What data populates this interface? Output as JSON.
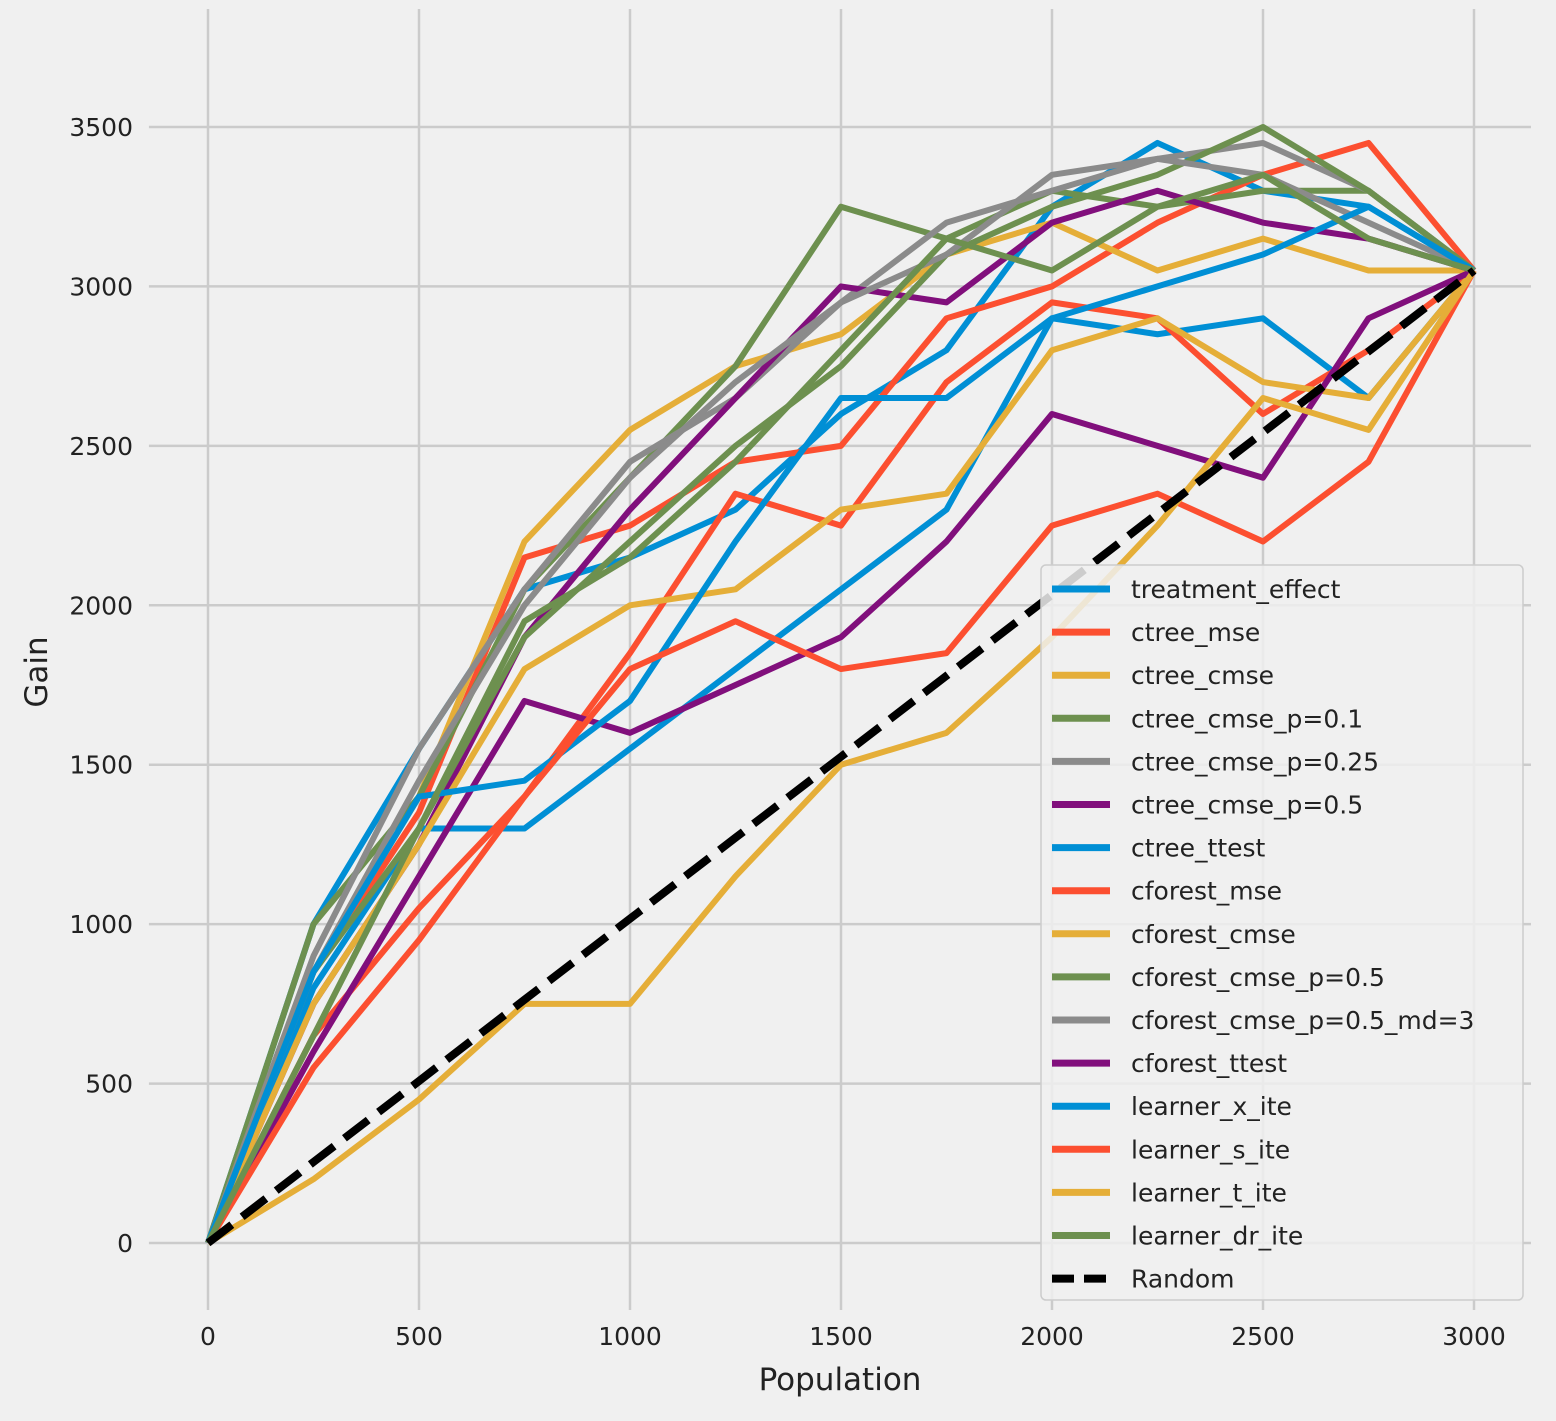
{
  "chart_data": {
    "type": "line",
    "title": "",
    "xlabel": "Population",
    "ylabel": "Gain",
    "xlim": [
      -140,
      3135
    ],
    "ylim": [
      -210,
      3870
    ],
    "xticks": [
      0,
      500,
      1000,
      1500,
      2000,
      2500,
      3000
    ],
    "yticks": [
      0,
      500,
      1000,
      1500,
      2000,
      2500,
      3000,
      3500
    ],
    "grid": true,
    "legend_position": "lower-right",
    "x": [
      0,
      250,
      500,
      750,
      1000,
      1250,
      1500,
      1750,
      2000,
      2250,
      2500,
      2750,
      3000
    ],
    "series": [
      {
        "name": "treatment_effect",
        "color": "#008fd5",
        "values": [
          0,
          1000,
          1550,
          2050,
          2150,
          2300,
          2600,
          2800,
          3250,
          3450,
          3300,
          3250,
          3050
        ]
      },
      {
        "name": "ctree_mse",
        "color": "#fc4f30",
        "values": [
          0,
          850,
          1350,
          2150,
          2250,
          2450,
          2500,
          2900,
          3000,
          3200,
          3350,
          3450,
          3050
        ]
      },
      {
        "name": "ctree_cmse",
        "color": "#e5ae38",
        "values": [
          0,
          850,
          1400,
          2200,
          2550,
          2750,
          2850,
          3100,
          3200,
          3050,
          3150,
          3050,
          3050
        ]
      },
      {
        "name": "ctree_cmse_p=0.1",
        "color": "#6d904f",
        "values": [
          0,
          1000,
          1400,
          2050,
          2400,
          2750,
          3250,
          3150,
          3300,
          3250,
          3300,
          3300,
          3050
        ]
      },
      {
        "name": "ctree_cmse_p=0.25",
        "color": "#8b8b8b",
        "values": [
          0,
          900,
          1550,
          2050,
          2450,
          2650,
          2950,
          3200,
          3300,
          3400,
          3450,
          3300,
          3050
        ]
      },
      {
        "name": "ctree_cmse_p=0.5",
        "color": "#810f7c",
        "values": [
          0,
          750,
          1250,
          1900,
          2300,
          2650,
          3000,
          2950,
          3200,
          3300,
          3200,
          3150,
          3050
        ]
      },
      {
        "name": "ctree_ttest",
        "color": "#008fd5",
        "values": [
          0,
          800,
          1300,
          1300,
          1550,
          1800,
          2050,
          2300,
          2900,
          2850,
          2900,
          2650,
          3050
        ]
      },
      {
        "name": "cforest_mse",
        "color": "#fc4f30",
        "values": [
          0,
          650,
          1050,
          1400,
          1850,
          2350,
          2250,
          2700,
          2950,
          2900,
          2600,
          2800,
          3050
        ]
      },
      {
        "name": "cforest_cmse",
        "color": "#e5ae38",
        "values": [
          0,
          750,
          1250,
          1800,
          2000,
          2050,
          2300,
          2350,
          2800,
          2900,
          2700,
          2650,
          3050
        ]
      },
      {
        "name": "cforest_cmse_p=0.5",
        "color": "#6d904f",
        "values": [
          0,
          850,
          1300,
          1900,
          2200,
          2500,
          2750,
          3100,
          3250,
          3350,
          3500,
          3300,
          3050
        ]
      },
      {
        "name": "cforest_cmse_p=0.5_md=3",
        "color": "#8b8b8b",
        "values": [
          0,
          850,
          1450,
          2000,
          2400,
          2700,
          2950,
          3100,
          3350,
          3400,
          3350,
          3200,
          3050
        ]
      },
      {
        "name": "cforest_ttest",
        "color": "#810f7c",
        "values": [
          0,
          600,
          1150,
          1700,
          1600,
          1750,
          1900,
          2200,
          2600,
          2500,
          2400,
          2900,
          3050
        ]
      },
      {
        "name": "learner_x_ite",
        "color": "#008fd5",
        "values": [
          0,
          850,
          1400,
          1450,
          1700,
          2200,
          2650,
          2650,
          2900,
          3000,
          3100,
          3250,
          3050
        ]
      },
      {
        "name": "learner_s_ite",
        "color": "#fc4f30",
        "values": [
          0,
          550,
          950,
          1400,
          1800,
          1950,
          1800,
          1850,
          2250,
          2350,
          2200,
          2450,
          3050
        ]
      },
      {
        "name": "learner_t_ite",
        "color": "#e5ae38",
        "values": [
          0,
          200,
          450,
          750,
          750,
          1150,
          1500,
          1600,
          1900,
          2250,
          2650,
          2550,
          3050
        ]
      },
      {
        "name": "learner_dr_ite",
        "color": "#6d904f",
        "values": [
          0,
          650,
          1300,
          1950,
          2150,
          2450,
          2800,
          3150,
          3050,
          3250,
          3350,
          3150,
          3050
        ]
      },
      {
        "name": "Random",
        "color": "#000000",
        "dashed": true,
        "values": [
          0,
          254,
          508,
          763,
          1017,
          1271,
          1525,
          1779,
          2033,
          2288,
          2542,
          2796,
          3050
        ]
      }
    ]
  }
}
